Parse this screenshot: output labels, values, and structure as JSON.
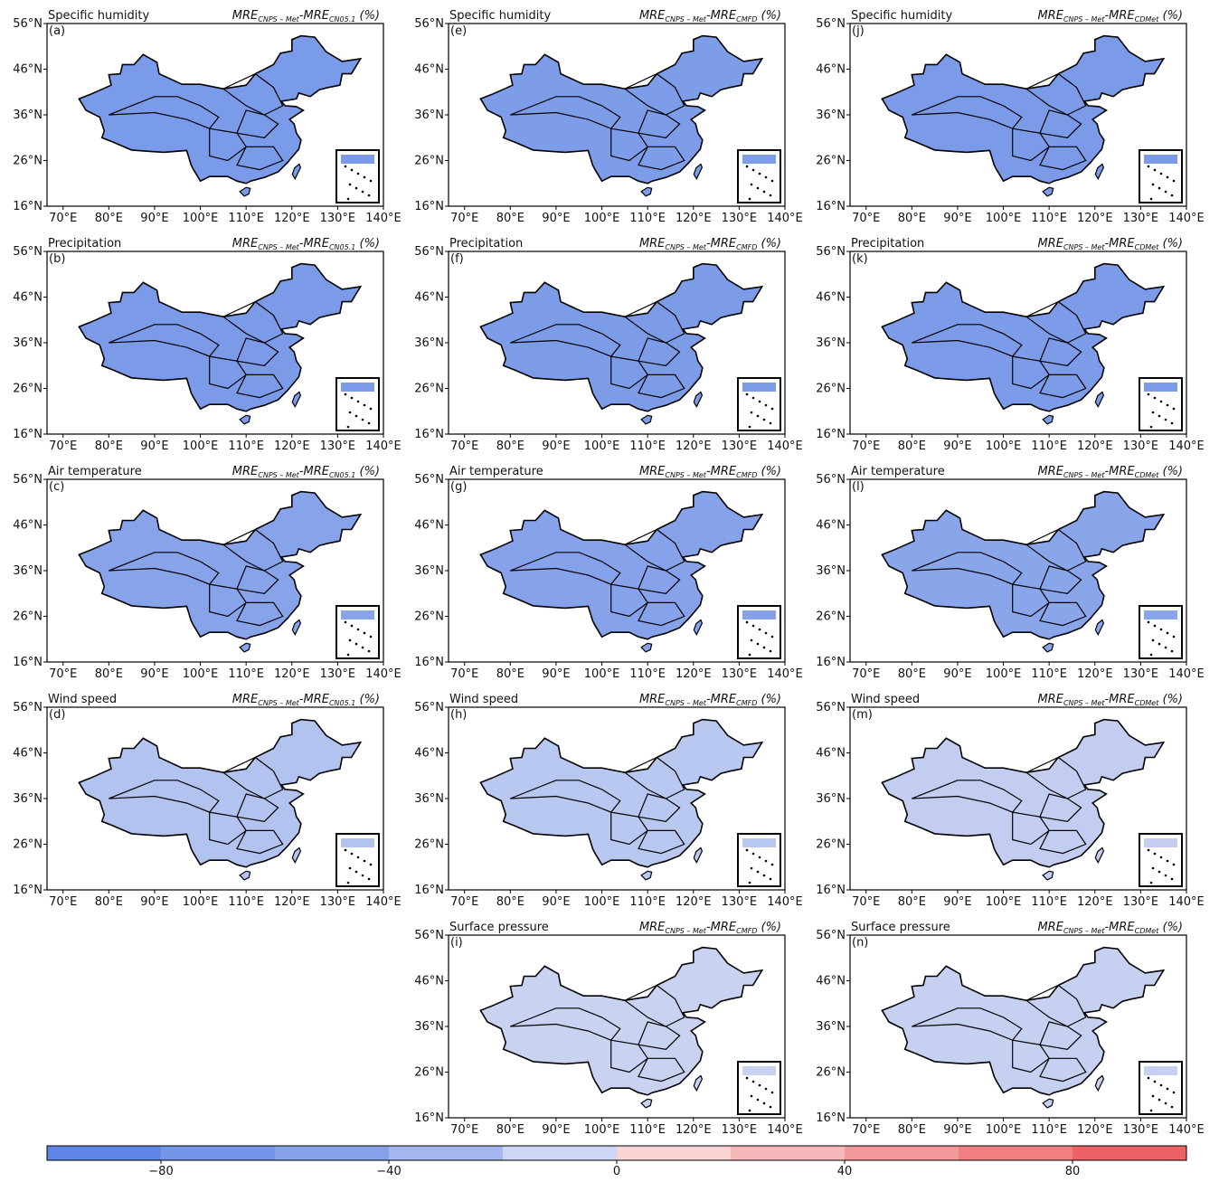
{
  "figure": {
    "lat_lim": [
      16,
      56
    ],
    "lon_lim": [
      66.5,
      140
    ],
    "lat_ticks": [
      {
        "value": 56,
        "label": "56°N"
      },
      {
        "value": 46,
        "label": "46°N"
      },
      {
        "value": 36,
        "label": "36°N"
      },
      {
        "value": 26,
        "label": "26°N"
      },
      {
        "value": 16,
        "label": "16°N"
      }
    ],
    "lon_ticks": [
      {
        "value": 70,
        "label": "70°E"
      },
      {
        "value": 80,
        "label": "80°E"
      },
      {
        "value": 90,
        "label": "90°E"
      },
      {
        "value": 100,
        "label": "100°E"
      },
      {
        "value": 110,
        "label": "110°E"
      },
      {
        "value": 120,
        "label": "120°E"
      },
      {
        "value": 130,
        "label": "130°E"
      },
      {
        "value": 140,
        "label": "140°E"
      }
    ],
    "mre": "MRE",
    "mre_sub": "CNPS – Met",
    "dash": "-",
    "unit": " (%)",
    "panels": [
      {
        "label": "(a)",
        "variable": "Specific humidity",
        "reference": "CN05.1",
        "fill_color": "#7a9bea"
      },
      {
        "label": "(b)",
        "variable": "Precipitation",
        "reference": "CN05.1",
        "fill_color": "#7b9ae8"
      },
      {
        "label": "(c)",
        "variable": "Air temperature",
        "reference": "CN05.1",
        "fill_color": "#87a4ea"
      },
      {
        "label": "(d)",
        "variable": "Wind speed",
        "reference": "CN05.1",
        "fill_color": "#b3c3f0"
      },
      {
        "label": "(e)",
        "variable": "Specific humidity",
        "reference": "CMFD",
        "fill_color": "#7d9de9"
      },
      {
        "label": "(f)",
        "variable": "Precipitation",
        "reference": "CMFD",
        "fill_color": "#7d9ce8"
      },
      {
        "label": "(g)",
        "variable": "Air temperature",
        "reference": "CMFD",
        "fill_color": "#86a2ea"
      },
      {
        "label": "(h)",
        "variable": "Wind speed",
        "reference": "CMFD",
        "fill_color": "#b9c8f1"
      },
      {
        "label": "(i)",
        "variable": "Surface pressure",
        "reference": "CMFD",
        "fill_color": "#c9d2f1"
      },
      {
        "label": "(j)",
        "variable": "Specific humidity",
        "reference": "CDMet",
        "fill_color": "#7b9be9"
      },
      {
        "label": "(k)",
        "variable": "Precipitation",
        "reference": "CDMet",
        "fill_color": "#7c9be8"
      },
      {
        "label": "(l)",
        "variable": "Air temperature",
        "reference": "CDMet",
        "fill_color": "#89a6eb"
      },
      {
        "label": "(m)",
        "variable": "Wind speed",
        "reference": "CDMet",
        "fill_color": "#c2cdf1"
      },
      {
        "label": "(n)",
        "variable": "Surface pressure",
        "reference": "CDMet",
        "fill_color": "#c6d0f1"
      }
    ],
    "colorbar": {
      "lim": [
        -100,
        100
      ],
      "levels": [
        -100,
        -80,
        -60,
        -40,
        -20,
        0,
        20,
        40,
        60,
        80,
        100
      ],
      "colors": [
        "#5f86e5",
        "#7495e8",
        "#86a3ea",
        "#a5b8ee",
        "#cdd6f4",
        "#f8d4d4",
        "#f5b9b9",
        "#f29a9b",
        "#ef7f81",
        "#ec6266"
      ],
      "ticks": [
        {
          "value": -80,
          "label": "−80"
        },
        {
          "value": -40,
          "label": "−40"
        },
        0,
        40,
        80
      ]
    }
  }
}
